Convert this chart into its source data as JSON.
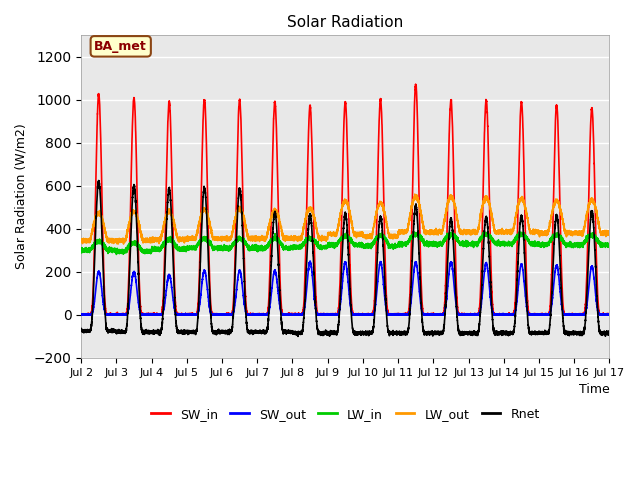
{
  "title": "Solar Radiation",
  "ylabel": "Solar Radiation (W/m2)",
  "xlabel": "Time",
  "annotation": "BA_met",
  "xlim_days": [
    2,
    17
  ],
  "ylim": [
    -200,
    1300
  ],
  "yticks": [
    -200,
    0,
    200,
    400,
    600,
    800,
    1000,
    1200
  ],
  "xtick_labels": [
    "Jul 2",
    "Jul 3",
    "Jul 4",
    "Jul 5",
    "Jul 6",
    "Jul 7",
    "Jul 8",
    "Jul 9",
    "Jul 10",
    "Jul 11",
    "Jul 12",
    "Jul 13",
    "Jul 14",
    "Jul 15",
    "Jul 16",
    "Jul 17"
  ],
  "series": {
    "SW_in": {
      "color": "#ff0000",
      "lw": 1.2
    },
    "SW_out": {
      "color": "#0000ff",
      "lw": 1.2
    },
    "LW_in": {
      "color": "#00cc00",
      "lw": 1.2
    },
    "LW_out": {
      "color": "#ff9900",
      "lw": 1.2
    },
    "Rnet": {
      "color": "#000000",
      "lw": 1.2
    }
  },
  "background_color": "#e8e8e8",
  "grid_color": "#ffffff",
  "n_days": 15,
  "start_day": 2,
  "SW_in_peaks": [
    1025,
    1010,
    990,
    1000,
    1000,
    990,
    970,
    990,
    1000,
    1070,
    1000,
    1000,
    990,
    975,
    960
  ],
  "SW_out_peaks": [
    200,
    200,
    185,
    205,
    205,
    205,
    245,
    245,
    245,
    245,
    245,
    240,
    235,
    230,
    225
  ],
  "LW_in_base": [
    300,
    295,
    305,
    310,
    310,
    310,
    315,
    325,
    320,
    330,
    330,
    330,
    330,
    325,
    325
  ],
  "LW_in_day": [
    40,
    40,
    45,
    45,
    45,
    45,
    40,
    40,
    50,
    45,
    45,
    45,
    45,
    45,
    45
  ],
  "LW_out_base": [
    345,
    345,
    350,
    355,
    355,
    355,
    355,
    375,
    365,
    385,
    385,
    385,
    385,
    380,
    380
  ],
  "LW_out_day": [
    130,
    135,
    130,
    135,
    140,
    130,
    140,
    155,
    155,
    165,
    165,
    160,
    155,
    150,
    155
  ],
  "Rnet_peaks": [
    695,
    680,
    665,
    670,
    665,
    555,
    550,
    555,
    540,
    590,
    530,
    540,
    545,
    545,
    565
  ],
  "Rnet_night": [
    -75,
    -80,
    -80,
    -80,
    -80,
    -80,
    -85,
    -85,
    -85,
    -85,
    -85,
    -85,
    -85,
    -85,
    -85
  ]
}
